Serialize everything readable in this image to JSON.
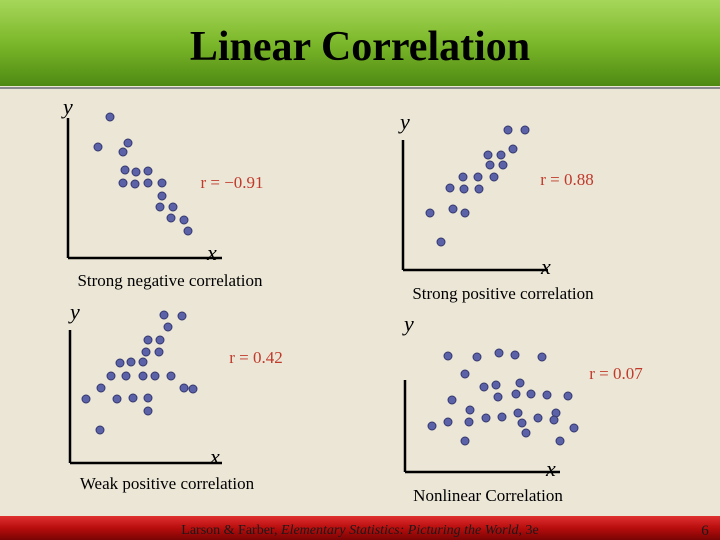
{
  "title": "Linear Correlation",
  "panels": [
    {
      "y_label": "y",
      "x_label": "x",
      "r_label": "r = −0.91",
      "caption": "Strong negative correlation"
    },
    {
      "y_label": "y",
      "x_label": "x",
      "r_label": "r = 0.88",
      "caption": "Strong positive correlation"
    },
    {
      "y_label": "y",
      "x_label": "x",
      "r_label": "r = 0.42",
      "caption": "Weak positive correlation"
    },
    {
      "y_label": "y",
      "x_label": "x",
      "r_label": "r = 0.07",
      "caption": "Nonlinear Correlation"
    }
  ],
  "footer": {
    "citation_prefix": "Larson & Farber, ",
    "citation_book": "Elementary Statistics: Picturing the World",
    "citation_suffix": ", 3e",
    "page": "6"
  }
}
